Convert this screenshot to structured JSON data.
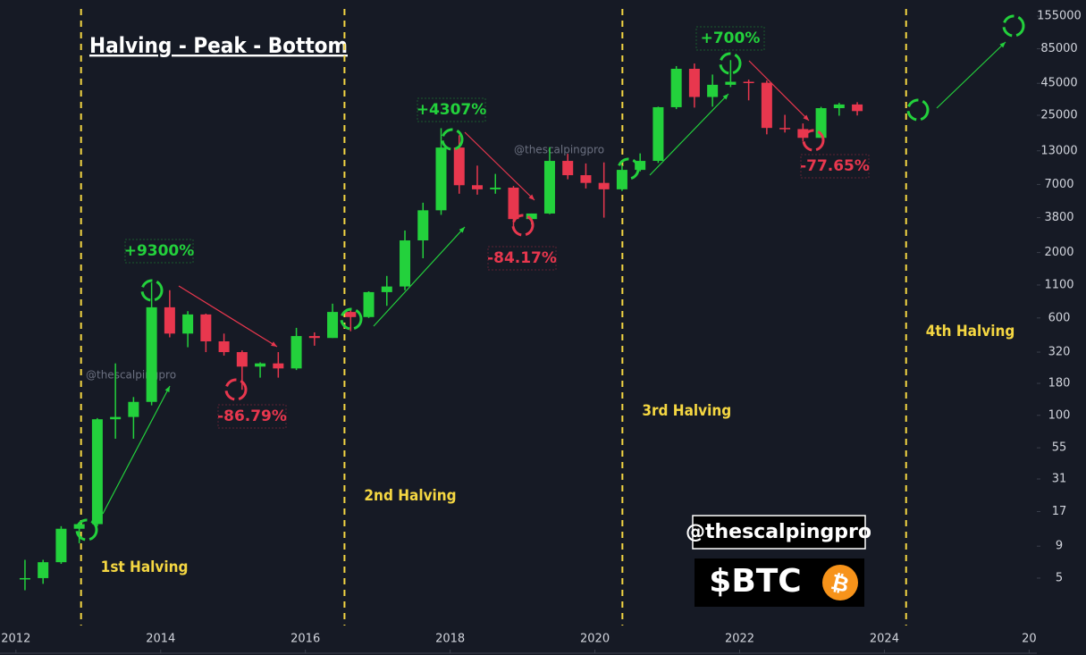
{
  "chart_data": {
    "type": "candlestick",
    "title": "Halving - Peak - Bottom",
    "log_scale": true,
    "up_color": "#23d13c",
    "down_color": "#e8374e",
    "halving_color": "#f5d742",
    "x": [
      2012.125,
      2012.375,
      2012.625,
      2012.875,
      2013.125,
      2013.375,
      2013.625,
      2013.875,
      2014.125,
      2014.375,
      2014.625,
      2014.875,
      2015.125,
      2015.375,
      2015.625,
      2015.875,
      2016.125,
      2016.375,
      2016.625,
      2016.875,
      2017.125,
      2017.375,
      2017.625,
      2017.875,
      2018.125,
      2018.375,
      2018.625,
      2018.875,
      2019.125,
      2019.375,
      2019.625,
      2019.875,
      2020.125,
      2020.375,
      2020.625,
      2020.875,
      2021.125,
      2021.375,
      2021.625,
      2021.875,
      2022.125,
      2022.375,
      2022.625,
      2022.875,
      2023.125,
      2023.375,
      2023.625
    ],
    "open": [
      5,
      5,
      6.7,
      12.4,
      13.5,
      93,
      97,
      128,
      730,
      450,
      640,
      390,
      320,
      245,
      260,
      237,
      430,
      415,
      670,
      610,
      965,
      1070,
      2500,
      4350,
      13800,
      6900,
      6400,
      6600,
      3700,
      4100,
      10800,
      8300,
      7200,
      6400,
      9150,
      10800,
      29000,
      58800,
      35000,
      43800,
      46300,
      45500,
      19800,
      19400,
      16500,
      28500,
      30500
    ],
    "high": [
      7,
      7,
      13,
      13.5,
      95,
      260,
      140,
      1150,
      1000,
      680,
      650,
      450,
      330,
      265,
      320,
      500,
      460,
      780,
      690,
      980,
      1300,
      3000,
      5000,
      19700,
      17300,
      9900,
      8500,
      6800,
      4100,
      13900,
      12300,
      10300,
      10500,
      10000,
      12400,
      29300,
      61800,
      64800,
      52900,
      69000,
      48200,
      47400,
      25200,
      21500,
      29200,
      31400,
      31800
    ],
    "low": [
      4,
      4.5,
      6.5,
      9.5,
      13,
      65,
      65,
      120,
      420,
      350,
      320,
      300,
      160,
      200,
      200,
      230,
      360,
      415,
      470,
      600,
      750,
      1000,
      1800,
      4000,
      5900,
      5800,
      5900,
      3150,
      3350,
      4050,
      7700,
      6500,
      3800,
      6200,
      8900,
      10400,
      28000,
      28800,
      29300,
      42000,
      32900,
      17600,
      18200,
      15500,
      16500,
      24800,
      24900
    ],
    "close": [
      5,
      6.7,
      12.4,
      13.5,
      93,
      97,
      128,
      730,
      450,
      640,
      390,
      320,
      245,
      260,
      237,
      430,
      415,
      670,
      610,
      965,
      1070,
      2500,
      4350,
      13800,
      6900,
      6400,
      6600,
      3700,
      4100,
      10800,
      8300,
      7200,
      6400,
      9150,
      10800,
      29000,
      58800,
      35000,
      43800,
      46300,
      45500,
      19800,
      19400,
      16500,
      28500,
      30500,
      27000
    ],
    "xlim": [
      2011.78,
      2026.02
    ],
    "xticks": [
      2012,
      2014,
      2016,
      2018,
      2020,
      2022,
      2024,
      {
        "value": 2026,
        "label": "20"
      }
    ],
    "ylim": [
      2.09,
      208500
    ],
    "yticks": [
      5,
      9,
      17,
      31,
      55,
      100,
      180,
      320,
      600,
      1100,
      2000,
      3800,
      7000,
      13000,
      25000,
      45000,
      85000,
      155000
    ],
    "halvings": [
      2012.9,
      2016.54,
      2020.38,
      2024.3
    ],
    "halving_labels": [
      "1st Halving",
      "2nd Halving",
      "3rd Halving",
      "4th Halving"
    ],
    "peak_labels": [
      "+9300%",
      "+4307%",
      "+700%"
    ],
    "bottom_labels": [
      "-86.79%",
      "-84.17%",
      "-77.65%"
    ],
    "watermark": "@thescalpingpro",
    "ticker": "$BTC",
    "ticker_icon": "₿"
  }
}
